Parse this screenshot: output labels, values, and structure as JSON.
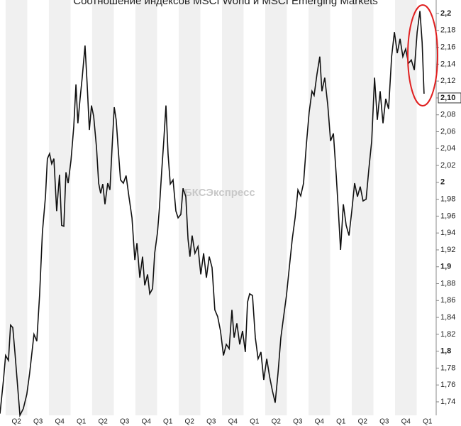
{
  "chart_data": {
    "type": "line",
    "title": "Соотношение индексов MSCI World и MSCI Emerging Markets",
    "watermark": "БКСЭкспресс",
    "xlim": [
      -0.26,
      19.9
    ],
    "xticks": [
      {
        "value": 0.5,
        "label": "Q2"
      },
      {
        "value": 1.5,
        "label": "Q3"
      },
      {
        "value": 2.5,
        "label": "Q4"
      },
      {
        "value": 3.5,
        "label": "Q1"
      },
      {
        "value": 4.5,
        "label": "Q2"
      },
      {
        "value": 5.5,
        "label": "Q3"
      },
      {
        "value": 6.5,
        "label": "Q4"
      },
      {
        "value": 7.5,
        "label": "Q1"
      },
      {
        "value": 8.5,
        "label": "Q2"
      },
      {
        "value": 9.5,
        "label": "Q3"
      },
      {
        "value": 10.5,
        "label": "Q4"
      },
      {
        "value": 11.5,
        "label": "Q1"
      },
      {
        "value": 12.5,
        "label": "Q2"
      },
      {
        "value": 13.5,
        "label": "Q3"
      },
      {
        "value": 14.5,
        "label": "Q4"
      },
      {
        "value": 15.5,
        "label": "Q1"
      },
      {
        "value": 16.5,
        "label": "Q2"
      },
      {
        "value": 17.5,
        "label": "Q3"
      },
      {
        "value": 18.5,
        "label": "Q4"
      },
      {
        "value": 19.5,
        "label": "Q1"
      }
    ],
    "ylim": [
      1.724,
      2.216
    ],
    "yticks": [
      {
        "value": 1.74,
        "label": "1,74"
      },
      {
        "value": 1.76,
        "label": "1,76"
      },
      {
        "value": 1.78,
        "label": "1,78"
      },
      {
        "value": 1.8,
        "label": "1,8"
      },
      {
        "value": 1.82,
        "label": "1,82"
      },
      {
        "value": 1.84,
        "label": "1,84"
      },
      {
        "value": 1.86,
        "label": "1,86"
      },
      {
        "value": 1.88,
        "label": "1,88"
      },
      {
        "value": 1.9,
        "label": "1,9"
      },
      {
        "value": 1.92,
        "label": "1,92"
      },
      {
        "value": 1.94,
        "label": "1,94"
      },
      {
        "value": 1.96,
        "label": "1,96"
      },
      {
        "value": 1.98,
        "label": "1,98"
      },
      2,
      {
        "value": 2.02,
        "label": "2,02"
      },
      {
        "value": 2.04,
        "label": "2,04"
      },
      {
        "value": 2.06,
        "label": "2,06"
      },
      {
        "value": 2.08,
        "label": "2,08"
      },
      {
        "value": 2.1,
        "label": "2,1"
      },
      {
        "value": 2.12,
        "label": "2,12"
      },
      {
        "value": 2.14,
        "label": "2,14"
      },
      {
        "value": 2.16,
        "label": "2,16"
      },
      {
        "value": 2.18,
        "label": "2,18"
      },
      {
        "value": 2.2,
        "label": "2,2"
      }
    ],
    "last_value": {
      "value": 2.1,
      "label": "2,10"
    },
    "color": "#111111",
    "series": [
      {
        "x": [
          -0.26,
          -0.1,
          0,
          0.13,
          0.23,
          0.33,
          0.43,
          0.66,
          0.82,
          0.98,
          1.11,
          1.31,
          1.44,
          1.57,
          1.7,
          1.84,
          1.93,
          2.03,
          2.13,
          2.23,
          2.36,
          2.49,
          2.59,
          2.69,
          2.79,
          2.89,
          3.02,
          3.15,
          3.25,
          3.34,
          3.44,
          3.54,
          3.67,
          3.77,
          3.87,
          3.97,
          4.07,
          4.2,
          4.3,
          4.39,
          4.49,
          4.59,
          4.72,
          4.82,
          4.92,
          5.02,
          5.11,
          5.21,
          5.31,
          5.44,
          5.57,
          5.7,
          5.84,
          5.97,
          6.07,
          6.2,
          6.33,
          6.43,
          6.56,
          6.66,
          6.79,
          6.89,
          7.02,
          7.11,
          7.21,
          7.31,
          7.41,
          7.51,
          7.61,
          7.74,
          7.87,
          7.97,
          8.1,
          8.2,
          8.33,
          8.43,
          8.52,
          8.62,
          8.75,
          8.89,
          9.02,
          9.15,
          9.28,
          9.41,
          9.54,
          9.67,
          9.8,
          9.93,
          10.07,
          10.2,
          10.33,
          10.46,
          10.56,
          10.69,
          10.82,
          10.95,
          11.08,
          11.18,
          11.28,
          11.41,
          11.54,
          11.67,
          11.8,
          11.93,
          12.07,
          12.2,
          12.33,
          12.46,
          12.59,
          12.72,
          12.85,
          12.98,
          13.11,
          13.25,
          13.38,
          13.51,
          13.64,
          13.77,
          13.9,
          14.03,
          14.16,
          14.26,
          14.39,
          14.52,
          14.62,
          14.75,
          14.89,
          15.02,
          15.15,
          15.28,
          15.38,
          15.48,
          15.61,
          15.74,
          15.87,
          16.0,
          16.13,
          16.26,
          16.39,
          16.52,
          16.66,
          16.79,
          16.92,
          17.05,
          17.18,
          17.31,
          17.44,
          17.57,
          17.7,
          17.84,
          17.97,
          18.1,
          18.23,
          18.36,
          18.49,
          18.62,
          18.75,
          18.89,
          19.02,
          19.15,
          19.25,
          19.34
        ],
        "values": [
          1.726,
          1.766,
          1.795,
          1.789,
          1.831,
          1.828,
          1.799,
          1.724,
          1.732,
          1.749,
          1.774,
          1.82,
          1.812,
          1.866,
          1.941,
          1.983,
          2.028,
          2.034,
          2.022,
          2.028,
          1.966,
          2.009,
          1.949,
          1.948,
          2.012,
          1.999,
          2.026,
          2.066,
          2.116,
          2.07,
          2.099,
          2.124,
          2.162,
          2.116,
          2.062,
          2.091,
          2.078,
          2.041,
          1.999,
          1.987,
          1.998,
          1.974,
          1.999,
          1.991,
          2.041,
          2.089,
          2.074,
          2.037,
          2.003,
          1.999,
          2.008,
          1.983,
          1.958,
          1.908,
          1.928,
          1.887,
          1.912,
          1.878,
          1.891,
          1.868,
          1.874,
          1.916,
          1.941,
          1.97,
          2.012,
          2.049,
          2.091,
          2.033,
          1.998,
          2.003,
          1.966,
          1.958,
          1.962,
          1.993,
          1.983,
          1.933,
          1.912,
          1.937,
          1.916,
          1.924,
          1.891,
          1.916,
          1.887,
          1.912,
          1.899,
          1.849,
          1.841,
          1.824,
          1.795,
          1.808,
          1.803,
          1.849,
          1.816,
          1.833,
          1.808,
          1.824,
          1.799,
          1.858,
          1.868,
          1.866,
          1.816,
          1.791,
          1.799,
          1.766,
          1.791,
          1.77,
          1.753,
          1.739,
          1.774,
          1.816,
          1.841,
          1.866,
          1.899,
          1.933,
          1.958,
          1.991,
          1.984,
          1.999,
          2.045,
          2.083,
          2.108,
          2.103,
          2.128,
          2.149,
          2.108,
          2.124,
          2.091,
          2.049,
          2.058,
          2.008,
          1.966,
          1.92,
          1.974,
          1.949,
          1.937,
          1.966,
          1.999,
          1.983,
          1.995,
          1.978,
          1.98,
          2.016,
          2.049,
          2.124,
          2.074,
          2.108,
          2.07,
          2.099,
          2.087,
          2.149,
          2.178,
          2.153,
          2.17,
          2.149,
          2.158,
          2.141,
          2.145,
          2.133,
          2.178,
          2.203,
          2.166,
          2.105
        ]
      }
    ]
  }
}
